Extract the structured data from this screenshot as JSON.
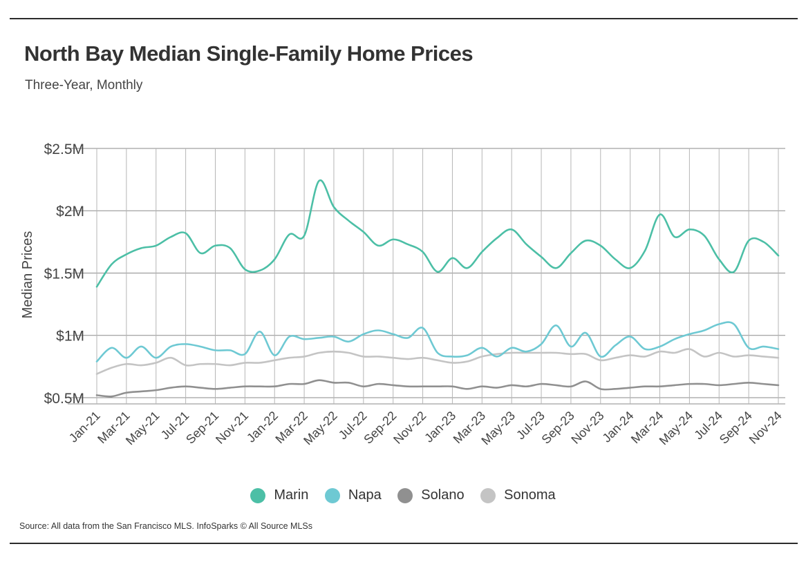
{
  "title": "North Bay Median Single-Family Home Prices",
  "subtitle": "Three-Year, Monthly",
  "source": "Source:  All data from the San Francisco MLS. InfoSparks © All Source MLSs",
  "chart_data": {
    "type": "line",
    "ylabel": "Median Prices",
    "ylim": [
      450000,
      2500000
    ],
    "yticks": [
      {
        "value": 500000,
        "label": "$0.5M"
      },
      {
        "value": 1000000,
        "label": "$1M"
      },
      {
        "value": 1500000,
        "label": "$1.5M"
      },
      {
        "value": 2000000,
        "label": "$2M"
      },
      {
        "value": 2500000,
        "label": "$2.5M"
      }
    ],
    "grid": true,
    "legend": "bottom-center",
    "x": [
      "Jan-21",
      "Feb-21",
      "Mar-21",
      "Apr-21",
      "May-21",
      "Jun-21",
      "Jul-21",
      "Aug-21",
      "Sep-21",
      "Oct-21",
      "Nov-21",
      "Dec-21",
      "Jan-22",
      "Feb-22",
      "Mar-22",
      "Apr-22",
      "May-22",
      "Jun-22",
      "Jul-22",
      "Aug-22",
      "Sep-22",
      "Oct-22",
      "Nov-22",
      "Dec-22",
      "Jan-23",
      "Feb-23",
      "Mar-23",
      "Apr-23",
      "May-23",
      "Jun-23",
      "Jul-23",
      "Aug-23",
      "Sep-23",
      "Oct-23",
      "Nov-23",
      "Dec-23",
      "Jan-24",
      "Feb-24",
      "Mar-24",
      "Apr-24",
      "May-24",
      "Jun-24",
      "Jul-24",
      "Aug-24",
      "Sep-24",
      "Oct-24",
      "Nov-24"
    ],
    "xtick_labels": [
      "Jan-21",
      "Mar-21",
      "May-21",
      "Jul-21",
      "Sep-21",
      "Nov-21",
      "Jan-22",
      "Mar-22",
      "May-22",
      "Jul-22",
      "Sep-22",
      "Nov-22",
      "Jan-23",
      "Mar-23",
      "May-23",
      "Jul-23",
      "Sep-23",
      "Nov-23",
      "Jan-24",
      "Mar-24",
      "May-24",
      "Jul-24",
      "Sep-24",
      "Nov-24"
    ],
    "series": [
      {
        "name": "Marin",
        "color": "#4cbfa6",
        "values": [
          1390000,
          1570000,
          1650000,
          1700000,
          1720000,
          1790000,
          1820000,
          1660000,
          1720000,
          1700000,
          1530000,
          1520000,
          1610000,
          1810000,
          1800000,
          2240000,
          2030000,
          1920000,
          1830000,
          1720000,
          1770000,
          1730000,
          1670000,
          1510000,
          1620000,
          1540000,
          1670000,
          1780000,
          1850000,
          1730000,
          1630000,
          1540000,
          1660000,
          1760000,
          1720000,
          1610000,
          1540000,
          1680000,
          1970000,
          1790000,
          1850000,
          1800000,
          1610000,
          1510000,
          1760000,
          1750000,
          1640000
        ]
      },
      {
        "name": "Napa",
        "color": "#6ec9d3",
        "values": [
          790000,
          900000,
          820000,
          910000,
          820000,
          910000,
          930000,
          910000,
          880000,
          880000,
          850000,
          1030000,
          840000,
          990000,
          970000,
          980000,
          990000,
          950000,
          1010000,
          1040000,
          1010000,
          980000,
          1060000,
          860000,
          830000,
          840000,
          900000,
          830000,
          900000,
          870000,
          930000,
          1080000,
          910000,
          1020000,
          830000,
          920000,
          990000,
          890000,
          910000,
          970000,
          1010000,
          1040000,
          1090000,
          1090000,
          900000,
          910000,
          890000
        ]
      },
      {
        "name": "Solano",
        "color": "#909090",
        "values": [
          520000,
          510000,
          540000,
          550000,
          560000,
          580000,
          590000,
          580000,
          570000,
          580000,
          590000,
          590000,
          590000,
          610000,
          610000,
          640000,
          620000,
          620000,
          590000,
          610000,
          600000,
          590000,
          590000,
          590000,
          590000,
          570000,
          590000,
          580000,
          600000,
          590000,
          610000,
          600000,
          590000,
          630000,
          570000,
          570000,
          580000,
          590000,
          590000,
          600000,
          610000,
          610000,
          600000,
          610000,
          620000,
          610000,
          600000
        ]
      },
      {
        "name": "Sonoma",
        "color": "#c4c4c4",
        "values": [
          690000,
          740000,
          770000,
          760000,
          780000,
          820000,
          760000,
          770000,
          770000,
          760000,
          780000,
          780000,
          800000,
          820000,
          830000,
          860000,
          870000,
          860000,
          830000,
          830000,
          820000,
          810000,
          820000,
          800000,
          780000,
          790000,
          830000,
          850000,
          860000,
          860000,
          860000,
          860000,
          850000,
          850000,
          800000,
          820000,
          840000,
          830000,
          870000,
          860000,
          890000,
          830000,
          860000,
          830000,
          840000,
          830000,
          820000
        ]
      }
    ]
  }
}
